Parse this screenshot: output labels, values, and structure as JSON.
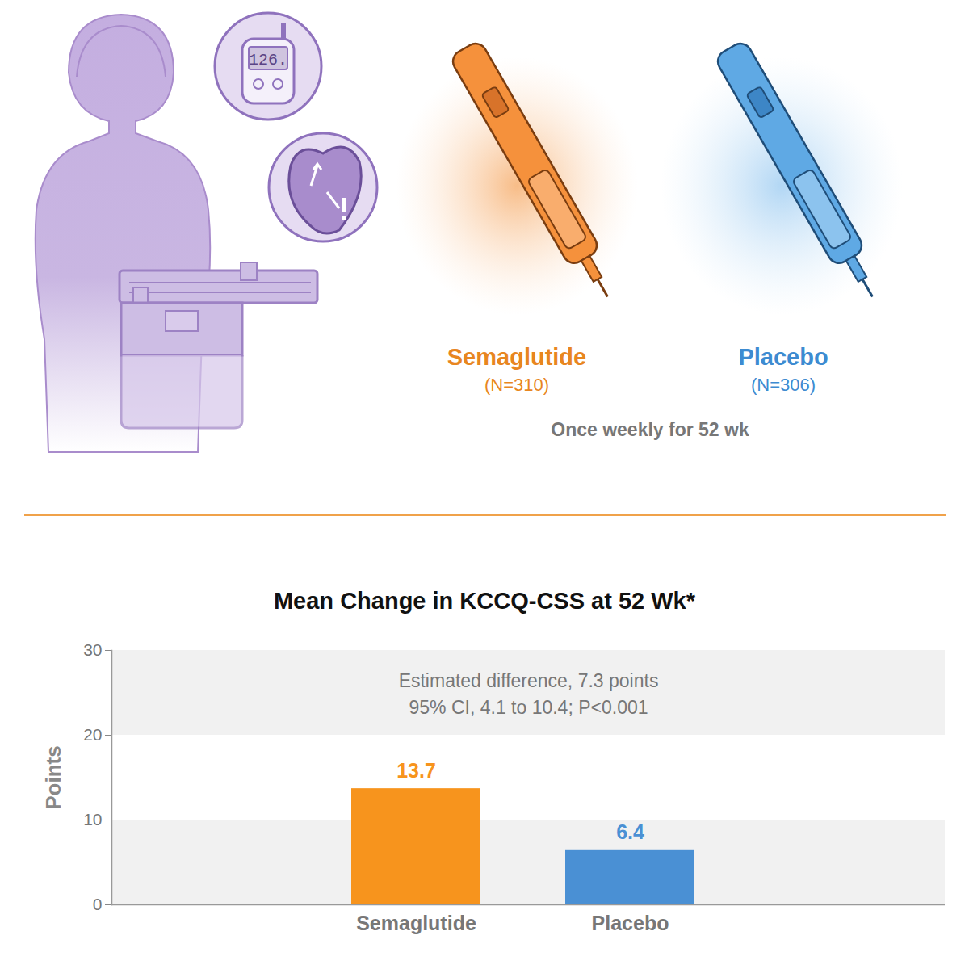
{
  "chart_data": {
    "type": "bar",
    "title": "Mean Change in KCCQ-CSS at 52 Wk*",
    "categories": [
      "Semaglutide",
      "Placebo"
    ],
    "values": [
      13.7,
      6.4
    ],
    "colors": [
      "#f7941d",
      "#4a90d4"
    ],
    "data_labels": true,
    "y_label": "Points",
    "ylim": [
      0,
      30
    ],
    "yticks": [
      0,
      10,
      20,
      30
    ],
    "grid": true,
    "annotations": [
      "Estimated difference, 7.3 points",
      "95% CI, 4.1 to 10.4; P<0.001"
    ],
    "arms": [
      {
        "name": "Semaglutide",
        "n_label": "(N=310)",
        "color": "#e8861f"
      },
      {
        "name": "Placebo",
        "n_label": "(N=306)",
        "color": "#3d8bd1"
      }
    ],
    "dosing": "Once weekly for 52 wk",
    "meter_reading": "126."
  }
}
